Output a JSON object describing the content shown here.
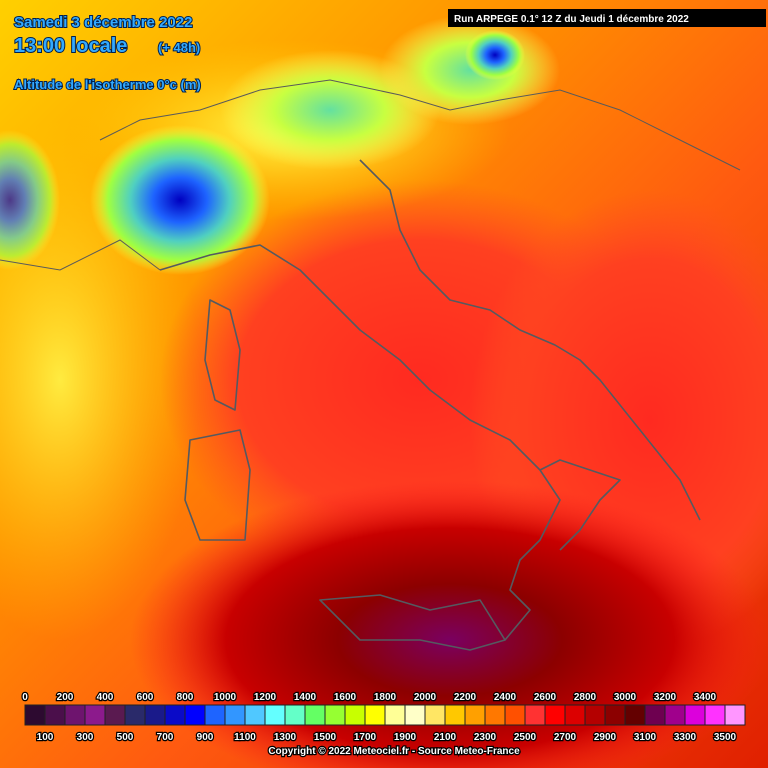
{
  "header": {
    "date": "Samedi 3 décembre 2022",
    "time": "13:00 locale",
    "lead": "(+ 48h)",
    "field": "Altitude de l'isotherme 0°c (m)"
  },
  "run_info": "Run ARPEGE 0.1° 12 Z du Jeudi 1 décembre 2022",
  "legend": {
    "labels": [
      0,
      100,
      200,
      300,
      400,
      500,
      600,
      700,
      800,
      900,
      1000,
      1100,
      1200,
      1300,
      1400,
      1500,
      1600,
      1700,
      1800,
      1900,
      2000,
      2100,
      2200,
      2300,
      2400,
      2500,
      2600,
      2700,
      2800,
      2900,
      3000,
      3100,
      3200,
      3300,
      3400,
      3500
    ],
    "colors": [
      "#2d0a30",
      "#4b0f4b",
      "#6e146e",
      "#8c1a8c",
      "#5a1a50",
      "#2a2a6a",
      "#1a1a8a",
      "#0a0ac8",
      "#0000ff",
      "#1e64ff",
      "#3296ff",
      "#50c8ff",
      "#64ffff",
      "#64ffc8",
      "#64ff64",
      "#96ff32",
      "#c8ff00",
      "#ffff00",
      "#ffff96",
      "#ffffc8",
      "#ffe664",
      "#ffc800",
      "#ffa000",
      "#ff7800",
      "#ff5000",
      "#ff3232",
      "#ff0000",
      "#dc0000",
      "#b40000",
      "#8c0000",
      "#640000",
      "#6e0050",
      "#a0008c",
      "#dc00dc",
      "#ff32ff",
      "#ff96ff"
    ]
  },
  "copyright": "Copyright © 2022 Meteociel.fr - Source Meteo-France"
}
